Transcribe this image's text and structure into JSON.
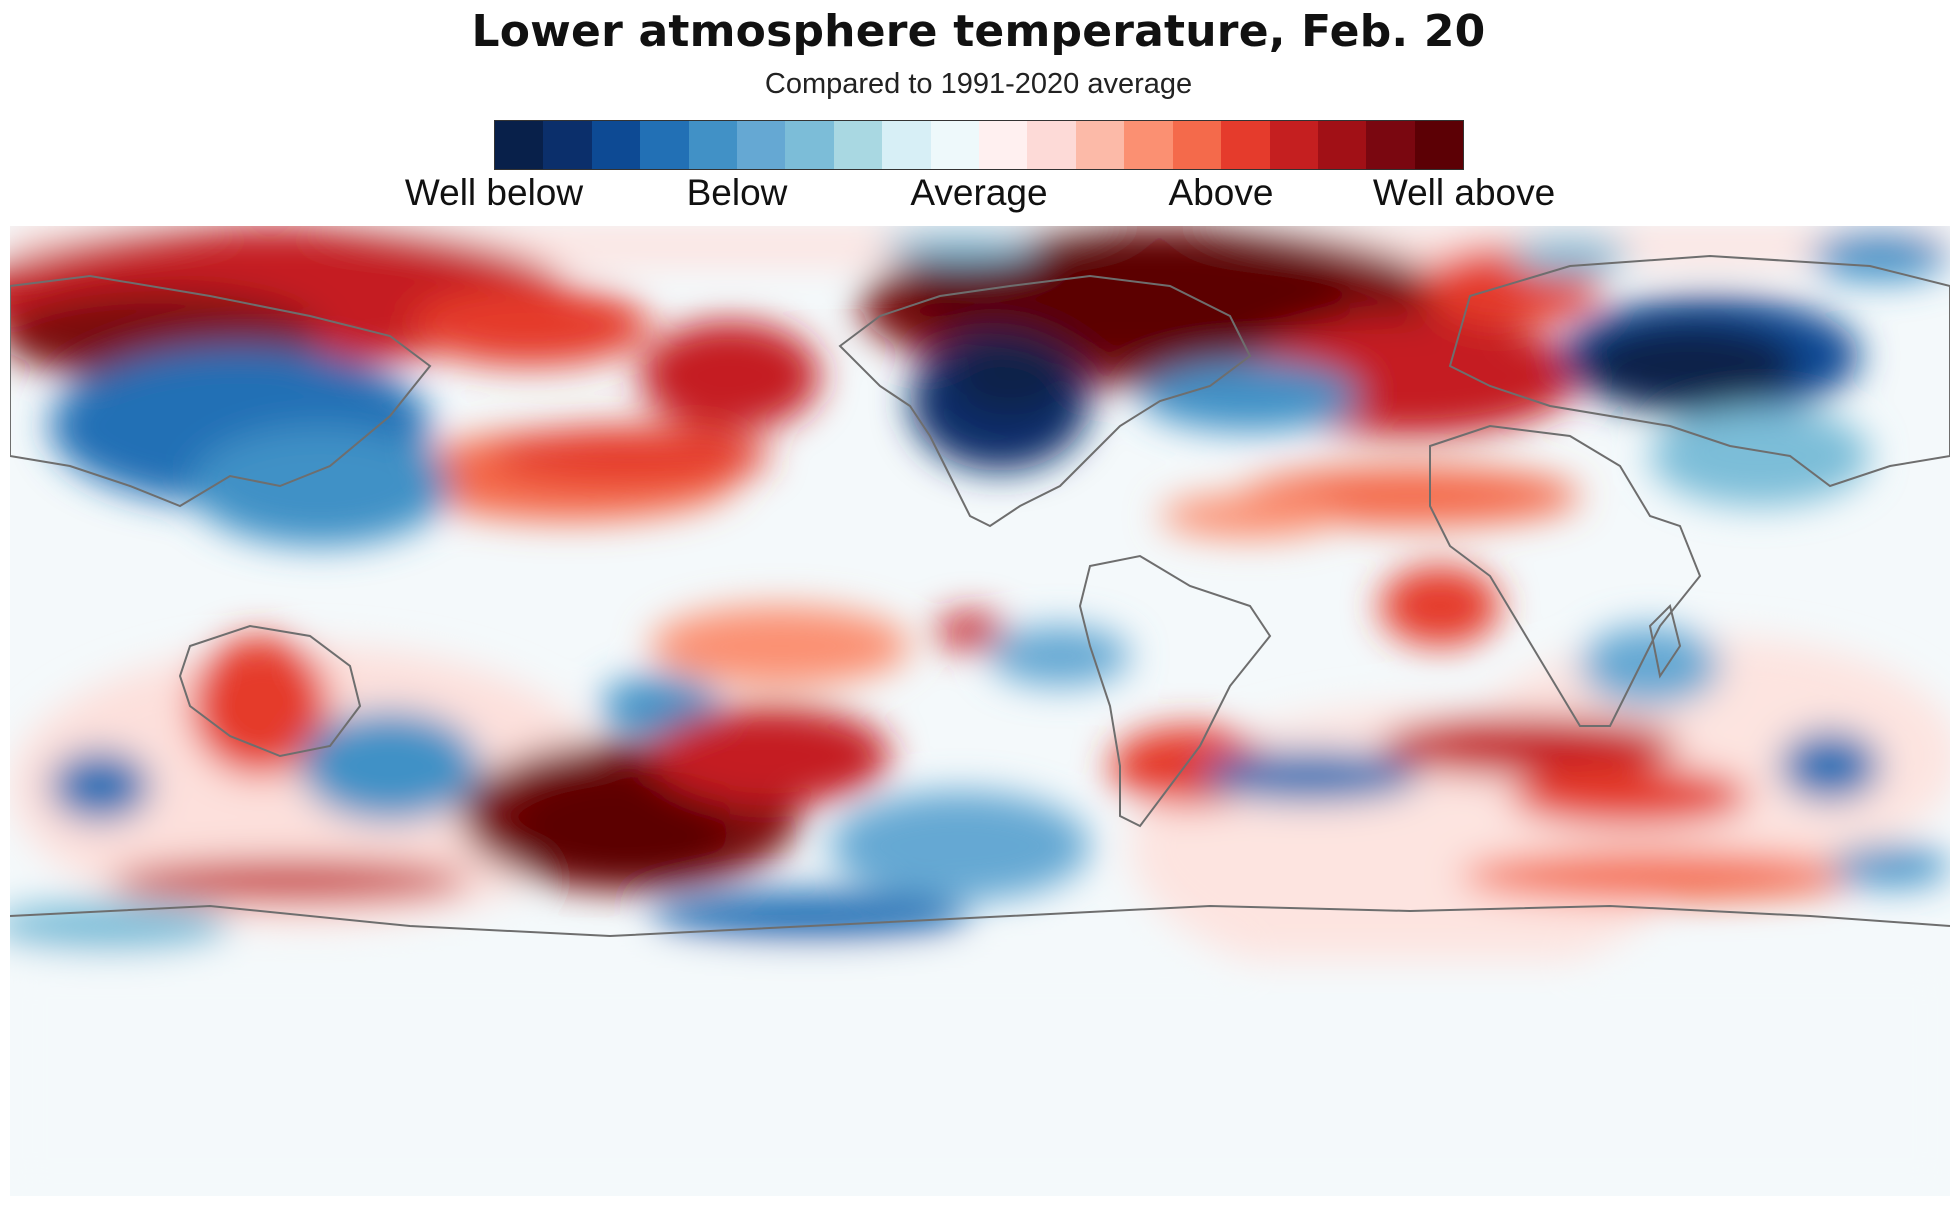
{
  "title": "Lower atmosphere temperature, Feb. 20",
  "subtitle": "Compared to 1991-2020 average",
  "legend": {
    "colors": [
      "#08204a",
      "#0b2f6b",
      "#0d4a94",
      "#2270b5",
      "#4191c6",
      "#65a8d3",
      "#7cbdd8",
      "#a9d8e2",
      "#d7eff6",
      "#eef9fb",
      "#fff0f0",
      "#fddad7",
      "#fcbaa8",
      "#fb9072",
      "#f46a4b",
      "#e53b2c",
      "#c51f20",
      "#a11016",
      "#7a0710",
      "#5c0005"
    ],
    "labels": [
      "Well below",
      "Below",
      "Average",
      "Above",
      "Well above"
    ]
  },
  "map": {
    "colors": {
      "background": "#f6f9fb",
      "land_border": "#6e6e6e"
    }
  }
}
